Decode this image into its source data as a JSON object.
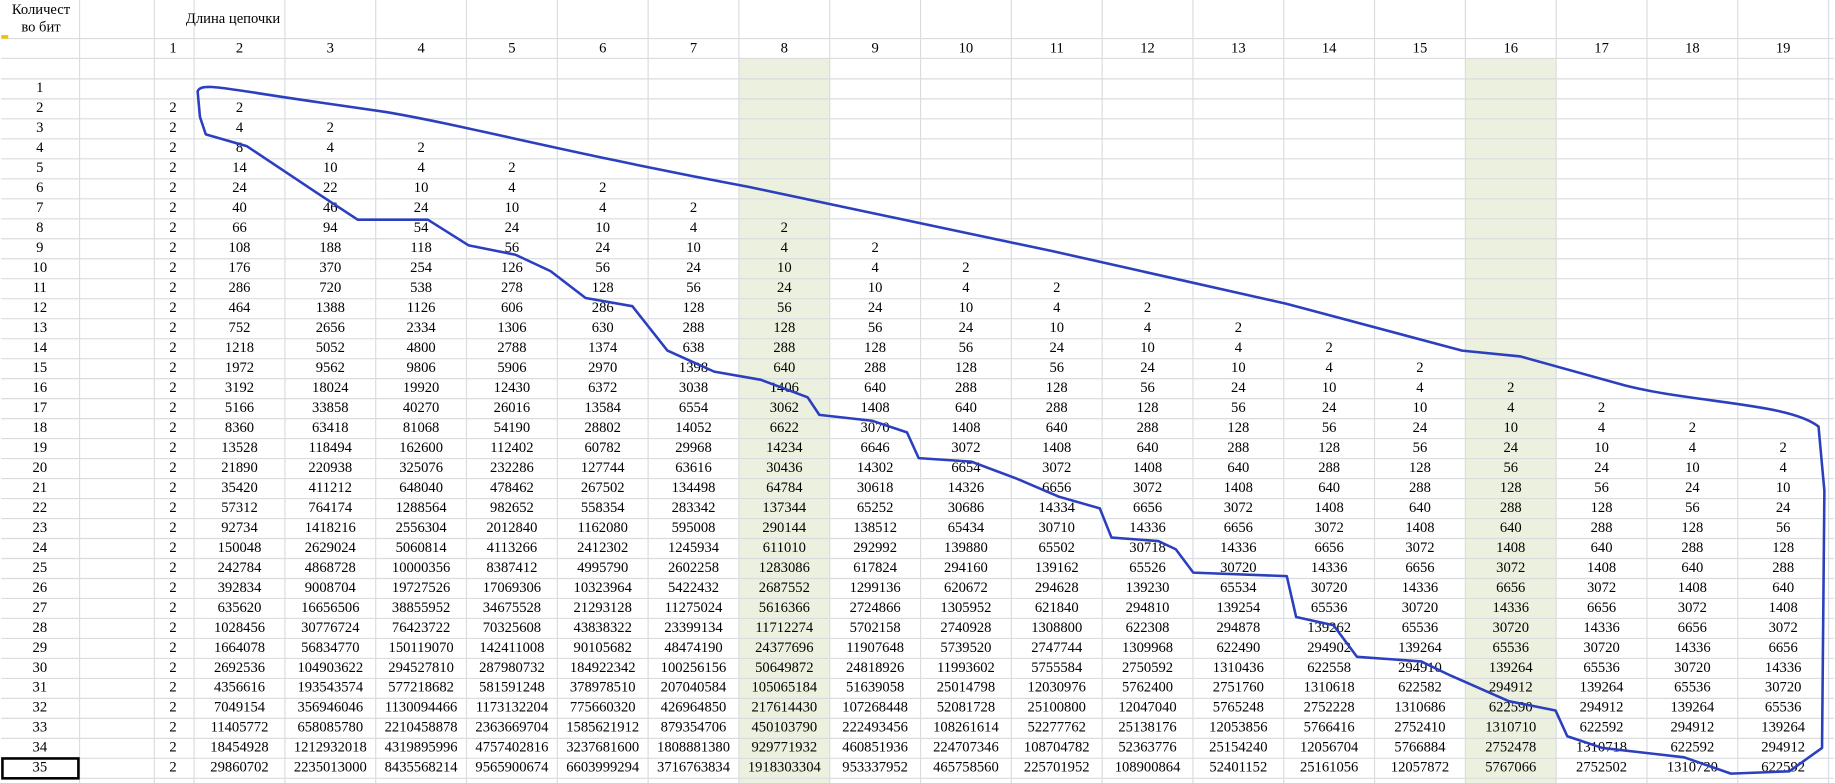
{
  "sheet": {
    "corner_header": [
      "Количест",
      "во бит"
    ],
    "title": "Длина цепочки",
    "columns": [
      1,
      2,
      3,
      4,
      5,
      6,
      7,
      8,
      9,
      10,
      11,
      12,
      13,
      14,
      15,
      16,
      17,
      18,
      19
    ],
    "rows": [
      {
        "label": 1,
        "values": []
      },
      {
        "label": 2,
        "values": [
          2,
          2
        ]
      },
      {
        "label": 3,
        "values": [
          2,
          4,
          2
        ]
      },
      {
        "label": 4,
        "values": [
          2,
          8,
          4,
          2
        ]
      },
      {
        "label": 5,
        "values": [
          2,
          14,
          10,
          4,
          2
        ]
      },
      {
        "label": 6,
        "values": [
          2,
          24,
          22,
          10,
          4,
          2
        ]
      },
      {
        "label": 7,
        "values": [
          2,
          40,
          46,
          24,
          10,
          4,
          2
        ]
      },
      {
        "label": 8,
        "values": [
          2,
          66,
          94,
          54,
          24,
          10,
          4,
          2
        ]
      },
      {
        "label": 9,
        "values": [
          2,
          108,
          188,
          118,
          56,
          24,
          10,
          4,
          2
        ]
      },
      {
        "label": 10,
        "values": [
          2,
          176,
          370,
          254,
          126,
          56,
          24,
          10,
          4,
          2
        ]
      },
      {
        "label": 11,
        "values": [
          2,
          286,
          720,
          538,
          278,
          128,
          56,
          24,
          10,
          4,
          2
        ]
      },
      {
        "label": 12,
        "values": [
          2,
          464,
          1388,
          1126,
          606,
          286,
          128,
          56,
          24,
          10,
          4,
          2
        ]
      },
      {
        "label": 13,
        "values": [
          2,
          752,
          2656,
          2334,
          1306,
          630,
          288,
          128,
          56,
          24,
          10,
          4,
          2
        ]
      },
      {
        "label": 14,
        "values": [
          2,
          1218,
          5052,
          4800,
          2788,
          1374,
          638,
          288,
          128,
          56,
          24,
          10,
          4,
          2
        ]
      },
      {
        "label": 15,
        "values": [
          2,
          1972,
          9562,
          9806,
          5906,
          2970,
          1398,
          640,
          288,
          128,
          56,
          24,
          10,
          4,
          2
        ]
      },
      {
        "label": 16,
        "values": [
          2,
          3192,
          18024,
          19920,
          12430,
          6372,
          3038,
          1406,
          640,
          288,
          128,
          56,
          24,
          10,
          4,
          2
        ]
      },
      {
        "label": 17,
        "values": [
          2,
          5166,
          33858,
          40270,
          26016,
          13584,
          6554,
          3062,
          1408,
          640,
          288,
          128,
          56,
          24,
          10,
          4,
          2
        ]
      },
      {
        "label": 18,
        "values": [
          2,
          8360,
          63418,
          81068,
          54190,
          28802,
          14052,
          6622,
          3070,
          1408,
          640,
          288,
          128,
          56,
          24,
          10,
          4,
          2
        ]
      },
      {
        "label": 19,
        "values": [
          2,
          13528,
          118494,
          162600,
          112402,
          60782,
          29968,
          14234,
          6646,
          3072,
          1408,
          640,
          288,
          128,
          56,
          24,
          10,
          4,
          2
        ]
      },
      {
        "label": 20,
        "values": [
          2,
          21890,
          220938,
          325076,
          232286,
          127744,
          63616,
          30436,
          14302,
          6654,
          3072,
          1408,
          640,
          288,
          128,
          56,
          24,
          10,
          4
        ]
      },
      {
        "label": 21,
        "values": [
          2,
          35420,
          411212,
          648040,
          478462,
          267502,
          134498,
          64784,
          30618,
          14326,
          6656,
          3072,
          1408,
          640,
          288,
          128,
          56,
          24,
          10
        ]
      },
      {
        "label": 22,
        "values": [
          2,
          57312,
          764174,
          1288564,
          982652,
          558354,
          283342,
          137344,
          65252,
          30686,
          14334,
          6656,
          3072,
          1408,
          640,
          288,
          128,
          56,
          24
        ]
      },
      {
        "label": 23,
        "values": [
          2,
          92734,
          1418216,
          2556304,
          2012840,
          1162080,
          595008,
          290144,
          138512,
          65434,
          30710,
          14336,
          6656,
          3072,
          1408,
          640,
          288,
          128,
          56
        ]
      },
      {
        "label": 24,
        "values": [
          2,
          150048,
          2629024,
          5060814,
          4113266,
          2412302,
          1245934,
          611010,
          292992,
          139880,
          65502,
          30718,
          14336,
          6656,
          3072,
          1408,
          640,
          288,
          128
        ]
      },
      {
        "label": 25,
        "values": [
          2,
          242784,
          4868728,
          10000356,
          8387412,
          4995790,
          2602258,
          1283086,
          617824,
          294160,
          139162,
          65526,
          30720,
          14336,
          6656,
          3072,
          1408,
          640,
          288
        ]
      },
      {
        "label": 26,
        "values": [
          2,
          392834,
          9008704,
          19727526,
          17069306,
          10323964,
          5422432,
          2687552,
          1299136,
          620672,
          294628,
          139230,
          65534,
          30720,
          14336,
          6656,
          3072,
          1408,
          640
        ]
      },
      {
        "label": 27,
        "values": [
          2,
          635620,
          16656506,
          38855952,
          34675528,
          21293128,
          11275024,
          5616366,
          2724866,
          1305952,
          621840,
          294810,
          139254,
          65536,
          30720,
          14336,
          6656,
          3072,
          1408
        ]
      },
      {
        "label": 28,
        "values": [
          2,
          1028456,
          30776724,
          76423722,
          70325608,
          43838322,
          23399134,
          11712274,
          5702158,
          2740928,
          1308800,
          622308,
          294878,
          139262,
          65536,
          30720,
          14336,
          6656,
          3072
        ]
      },
      {
        "label": 29,
        "values": [
          2,
          1664078,
          56834770,
          150119070,
          142411008,
          90105682,
          48474190,
          24377696,
          11907648,
          5739520,
          2747744,
          1309968,
          622490,
          294902,
          139264,
          65536,
          30720,
          14336,
          6656
        ]
      },
      {
        "label": 30,
        "values": [
          2,
          2692536,
          104903622,
          294527810,
          287980732,
          184922342,
          100256156,
          50649872,
          24818926,
          11993602,
          5755584,
          2750592,
          1310436,
          622558,
          294910,
          139264,
          65536,
          30720,
          14336
        ]
      },
      {
        "label": 31,
        "values": [
          2,
          4356616,
          193543574,
          577218682,
          581591248,
          378978510,
          207040584,
          105065184,
          51639058,
          25014798,
          12030976,
          5762400,
          2751760,
          1310618,
          622582,
          294912,
          139264,
          65536,
          30720
        ]
      },
      {
        "label": 32,
        "values": [
          2,
          7049154,
          356946046,
          1130094466,
          1173132204,
          775660320,
          426964850,
          217614430,
          107268448,
          52081728,
          25100800,
          12047040,
          5765248,
          2752228,
          1310686,
          622590,
          294912,
          139264,
          65536
        ]
      },
      {
        "label": 33,
        "values": [
          2,
          11405772,
          658085780,
          2210458878,
          2363669704,
          1585621912,
          879354706,
          450103790,
          222493456,
          108261614,
          52277762,
          25138176,
          12053856,
          5766416,
          2752410,
          1310710,
          622592,
          294912,
          139264
        ]
      },
      {
        "label": 34,
        "values": [
          2,
          18454928,
          1212932018,
          4319895996,
          4757402816,
          3237681600,
          1808881380,
          929771932,
          460851936,
          224707346,
          108704782,
          52363776,
          25154240,
          12056704,
          5766884,
          2752478,
          1310718,
          622592,
          294912
        ]
      },
      {
        "label": 35,
        "values": [
          2,
          29860702,
          2235013000,
          8435568214,
          9565900674,
          6603999294,
          3716763834,
          1918303304,
          953337952,
          465758560,
          225701952,
          108900864,
          52401152,
          25161056,
          12057872,
          5767066,
          2752502,
          1310720,
          622592
        ]
      }
    ]
  }
}
